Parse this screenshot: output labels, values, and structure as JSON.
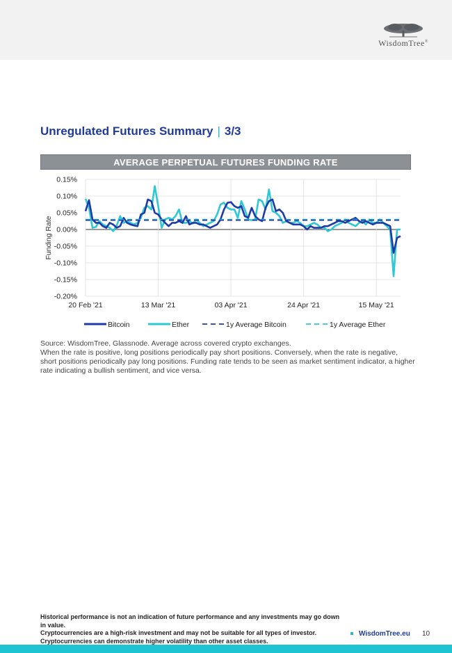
{
  "brand": {
    "logo_text": "WisdomTree",
    "logo_mark": "®"
  },
  "page": {
    "title": "Unregulated Futures Summary",
    "title_sep": "|",
    "title_part": "3/3",
    "page_number": "10"
  },
  "chart_data": {
    "type": "line",
    "title": "AVERAGE PERPETUAL FUTURES FUNDING RATE",
    "ylabel": "Funding Rate",
    "xlabel": "",
    "ylim": [
      -0.2,
      0.15
    ],
    "yticks": [
      0.15,
      0.1,
      0.05,
      0.0,
      -0.05,
      -0.1,
      -0.15,
      -0.2
    ],
    "ytick_labels": [
      "0.15%",
      "0.10%",
      "0.05%",
      "0.00%",
      "-0.05%",
      "-0.10%",
      "-0.15%",
      "-0.20%"
    ],
    "x_start": "2021-02-20",
    "x_end": "2021-05-22",
    "x_ticks": [
      "2021-02-20",
      "2021-03-13",
      "2021-04-03",
      "2021-04-24",
      "2021-05-15"
    ],
    "xtick_labels": [
      "20 Feb '21",
      "13 Mar '21",
      "03 Apr '21",
      "24 Apr '21",
      "15 May '21"
    ],
    "grid": "horizontal",
    "legend": "bottom",
    "series": [
      {
        "name": "Bitcoin",
        "color": "#1f3aa8",
        "style": "solid",
        "x": [
          "2021-02-20",
          "2021-02-21",
          "2021-02-22",
          "2021-02-23",
          "2021-02-24",
          "2021-02-25",
          "2021-02-26",
          "2021-02-27",
          "2021-02-28",
          "2021-03-01",
          "2021-03-02",
          "2021-03-03",
          "2021-03-04",
          "2021-03-05",
          "2021-03-06",
          "2021-03-07",
          "2021-03-08",
          "2021-03-09",
          "2021-03-10",
          "2021-03-11",
          "2021-03-12",
          "2021-03-13",
          "2021-03-14",
          "2021-03-15",
          "2021-03-16",
          "2021-03-17",
          "2021-03-18",
          "2021-03-19",
          "2021-03-20",
          "2021-03-21",
          "2021-03-22",
          "2021-03-23",
          "2021-03-24",
          "2021-03-25",
          "2021-03-26",
          "2021-03-27",
          "2021-03-28",
          "2021-03-29",
          "2021-03-30",
          "2021-03-31",
          "2021-04-01",
          "2021-04-02",
          "2021-04-03",
          "2021-04-04",
          "2021-04-05",
          "2021-04-06",
          "2021-04-07",
          "2021-04-08",
          "2021-04-09",
          "2021-04-10",
          "2021-04-11",
          "2021-04-12",
          "2021-04-13",
          "2021-04-14",
          "2021-04-15",
          "2021-04-16",
          "2021-04-17",
          "2021-04-18",
          "2021-04-19",
          "2021-04-20",
          "2021-04-21",
          "2021-04-22",
          "2021-04-23",
          "2021-04-24",
          "2021-04-25",
          "2021-04-26",
          "2021-04-27",
          "2021-04-28",
          "2021-04-29",
          "2021-04-30",
          "2021-05-01",
          "2021-05-02",
          "2021-05-03",
          "2021-05-04",
          "2021-05-05",
          "2021-05-06",
          "2021-05-07",
          "2021-05-08",
          "2021-05-09",
          "2021-05-10",
          "2021-05-11",
          "2021-05-12",
          "2021-05-13",
          "2021-05-14",
          "2021-05-15",
          "2021-05-16",
          "2021-05-17",
          "2021-05-18",
          "2021-05-19",
          "2021-05-20",
          "2021-05-21",
          "2021-05-22"
        ],
        "values": [
          0.055,
          0.088,
          0.03,
          0.02,
          0.02,
          0.01,
          0.005,
          0.02,
          0.015,
          0.005,
          0.01,
          0.035,
          0.02,
          0.015,
          0.012,
          0.01,
          0.045,
          0.05,
          0.09,
          0.085,
          0.05,
          0.045,
          0.03,
          0.02,
          0.01,
          0.02,
          0.02,
          0.025,
          0.02,
          0.04,
          0.015,
          0.02,
          0.02,
          0.015,
          0.015,
          0.01,
          0.005,
          0.01,
          0.015,
          0.03,
          0.06,
          0.08,
          0.082,
          0.07,
          0.065,
          0.07,
          0.04,
          0.035,
          0.065,
          0.04,
          0.03,
          0.025,
          0.065,
          0.085,
          0.09,
          0.055,
          0.06,
          0.05,
          0.025,
          0.02,
          0.015,
          0.015,
          0.015,
          0.01,
          0.0,
          0.01,
          0.005,
          0.005,
          0.005,
          0.01,
          0.01,
          0.015,
          0.02,
          0.025,
          0.025,
          0.02,
          0.025,
          0.03,
          0.035,
          0.025,
          0.02,
          0.025,
          0.02,
          0.015,
          0.02,
          0.02,
          0.02,
          0.015,
          0.01,
          -0.07,
          -0.025,
          -0.02
        ]
      },
      {
        "name": "Ether",
        "color": "#2ec8d2",
        "style": "solid",
        "x": [
          "2021-02-20",
          "2021-02-21",
          "2021-02-22",
          "2021-02-23",
          "2021-02-24",
          "2021-02-25",
          "2021-02-26",
          "2021-02-27",
          "2021-02-28",
          "2021-03-01",
          "2021-03-02",
          "2021-03-03",
          "2021-03-04",
          "2021-03-05",
          "2021-03-06",
          "2021-03-07",
          "2021-03-08",
          "2021-03-09",
          "2021-03-10",
          "2021-03-11",
          "2021-03-12",
          "2021-03-13",
          "2021-03-14",
          "2021-03-15",
          "2021-03-16",
          "2021-03-17",
          "2021-03-18",
          "2021-03-19",
          "2021-03-20",
          "2021-03-21",
          "2021-03-22",
          "2021-03-23",
          "2021-03-24",
          "2021-03-25",
          "2021-03-26",
          "2021-03-27",
          "2021-03-28",
          "2021-03-29",
          "2021-03-30",
          "2021-03-31",
          "2021-04-01",
          "2021-04-02",
          "2021-04-03",
          "2021-04-04",
          "2021-04-05",
          "2021-04-06",
          "2021-04-07",
          "2021-04-08",
          "2021-04-09",
          "2021-04-10",
          "2021-04-11",
          "2021-04-12",
          "2021-04-13",
          "2021-04-14",
          "2021-04-15",
          "2021-04-16",
          "2021-04-17",
          "2021-04-18",
          "2021-04-19",
          "2021-04-20",
          "2021-04-21",
          "2021-04-22",
          "2021-04-23",
          "2021-04-24",
          "2021-04-25",
          "2021-04-26",
          "2021-04-27",
          "2021-04-28",
          "2021-04-29",
          "2021-04-30",
          "2021-05-01",
          "2021-05-02",
          "2021-05-03",
          "2021-05-04",
          "2021-05-05",
          "2021-05-06",
          "2021-05-07",
          "2021-05-08",
          "2021-05-09",
          "2021-05-10",
          "2021-05-11",
          "2021-05-12",
          "2021-05-13",
          "2021-05-14",
          "2021-05-15",
          "2021-05-16",
          "2021-05-17",
          "2021-05-18",
          "2021-05-19",
          "2021-05-20",
          "2021-05-21",
          "2021-05-22"
        ],
        "values": [
          0.092,
          0.065,
          0.005,
          0.008,
          0.025,
          0.015,
          0.01,
          0.005,
          -0.005,
          0.012,
          0.04,
          0.02,
          0.025,
          0.02,
          0.015,
          0.02,
          0.035,
          0.065,
          0.07,
          0.06,
          0.13,
          0.07,
          0.005,
          0.03,
          0.035,
          0.03,
          0.04,
          0.06,
          0.02,
          0.02,
          0.025,
          0.018,
          0.03,
          0.02,
          0.01,
          0.015,
          0.02,
          0.025,
          0.045,
          0.075,
          0.08,
          0.065,
          0.06,
          0.06,
          0.035,
          0.085,
          0.06,
          0.03,
          0.028,
          0.03,
          0.09,
          0.085,
          0.06,
          0.12,
          0.055,
          0.05,
          0.04,
          0.02,
          0.025,
          0.02,
          0.02,
          0.025,
          0.02,
          0.01,
          0.01,
          0.015,
          0.02,
          0.015,
          0.005,
          0.005,
          -0.005,
          0.0,
          0.01,
          0.015,
          0.02,
          0.03,
          0.02,
          0.015,
          0.01,
          0.02,
          0.025,
          0.015,
          0.03,
          0.02,
          0.02,
          0.03,
          0.02,
          0.01,
          0.0,
          -0.14,
          0.0,
          0.0
        ]
      },
      {
        "name": "1y Average Bitcoin",
        "color": "#1f3aa8",
        "style": "dashed",
        "x": [
          "2021-02-20",
          "2021-05-22"
        ],
        "values": [
          0.028,
          0.028
        ]
      },
      {
        "name": "1y Average Ether",
        "color": "#2ec8d2",
        "style": "dashed",
        "x": [
          "2021-02-20",
          "2021-05-22"
        ],
        "values": [
          0.03,
          0.03
        ]
      }
    ]
  },
  "source_text": [
    "Source: WisdomTree, Glassnode. Average across covered crypto exchanges.",
    "When the rate is positive, long positions periodically pay short positions. Conversely, when the rate is negative, short positions periodically pay long positions. Funding rate tends to be seen as market sentiment indicator, a higher rate indicating a bullish sentiment, and vice versa."
  ],
  "disclaimer": [
    "Historical performance is not an indication of future performance and any investments may go down in value.",
    "Cryptocurrencies are a high-risk investment and may not be suitable for all types of investor.",
    "Cryptocurrencies can demonstrate higher volatility than other asset classes."
  ],
  "footer": {
    "link": "WisdomTree.eu"
  },
  "colors": {
    "brand_blue": "#1f3a9a",
    "accent_teal": "#1ec4d2",
    "banner_gray": "#8c9196"
  }
}
